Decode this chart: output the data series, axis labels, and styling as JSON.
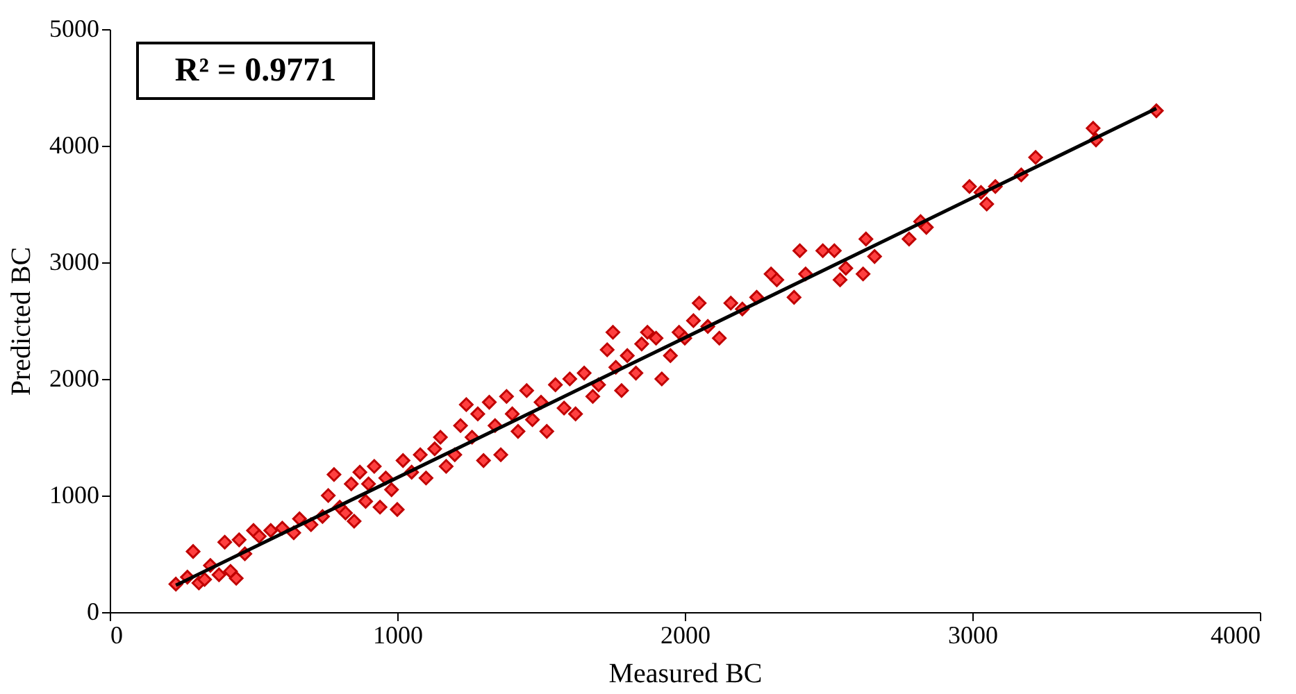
{
  "chart_data": {
    "type": "scatter",
    "xlabel": "Measured BC",
    "ylabel": "Predicted BC",
    "annotations": [
      "R² = 0.9771"
    ],
    "xlim": [
      0,
      4000
    ],
    "xticks": [
      0,
      1000,
      2000,
      3000,
      4000
    ],
    "ylim": [
      0,
      5000
    ],
    "yticks": [
      0,
      1000,
      2000,
      3000,
      4000,
      5000
    ],
    "grid": false,
    "legend": false,
    "marker": "diamond",
    "series": [
      {
        "color": "#ff4040",
        "x": [
          230,
          270,
          290,
          310,
          330,
          350,
          380,
          400,
          420,
          440,
          450,
          470,
          500,
          520,
          560,
          600,
          640,
          660,
          700,
          740,
          760,
          780,
          800,
          820,
          840,
          850,
          870,
          890,
          900,
          920,
          940,
          960,
          980,
          1000,
          1020,
          1050,
          1080,
          1100,
          1130,
          1150,
          1170,
          1200,
          1220,
          1240,
          1260,
          1280,
          1300,
          1320,
          1340,
          1360,
          1380,
          1400,
          1420,
          1450,
          1470,
          1500,
          1520,
          1550,
          1580,
          1600,
          1620,
          1650,
          1680,
          1700,
          1730,
          1750,
          1760,
          1780,
          1800,
          1830,
          1850,
          1870,
          1900,
          1920,
          1950,
          1980,
          2000,
          2030,
          2050,
          2080,
          2120,
          2160,
          2200,
          2250,
          2300,
          2320,
          2380,
          2400,
          2420,
          2480,
          2520,
          2540,
          2560,
          2620,
          2630,
          2660,
          2780,
          2820,
          2840,
          2990,
          3030,
          3050,
          3080,
          3170,
          3220,
          3420,
          3430,
          3640
        ],
        "values": [
          240,
          300,
          520,
          250,
          280,
          400,
          320,
          600,
          350,
          290,
          620,
          500,
          700,
          650,
          700,
          720,
          680,
          800,
          750,
          820,
          1000,
          1180,
          900,
          850,
          1100,
          780,
          1200,
          950,
          1100,
          1250,
          900,
          1150,
          1050,
          880,
          1300,
          1200,
          1350,
          1150,
          1400,
          1500,
          1250,
          1350,
          1600,
          1780,
          1500,
          1700,
          1300,
          1800,
          1600,
          1350,
          1850,
          1700,
          1550,
          1900,
          1650,
          1800,
          1550,
          1950,
          1750,
          2000,
          1700,
          2050,
          1850,
          1950,
          2250,
          2400,
          2100,
          1900,
          2200,
          2050,
          2300,
          2400,
          2350,
          2000,
          2200,
          2400,
          2350,
          2500,
          2650,
          2450,
          2350,
          2650,
          2600,
          2700,
          2900,
          2850,
          2700,
          3100,
          2900,
          3100,
          3100,
          2850,
          2950,
          2900,
          3200,
          3050,
          3200,
          3350,
          3300,
          3650,
          3600,
          3500,
          3650,
          3750,
          3900,
          4150,
          4050,
          4300
        ]
      },
      {
        "type": "line",
        "color": "#000000",
        "marker": "none",
        "line_style": "solid",
        "x": [
          230,
          3640
        ],
        "values": [
          230,
          4320
        ]
      }
    ]
  }
}
